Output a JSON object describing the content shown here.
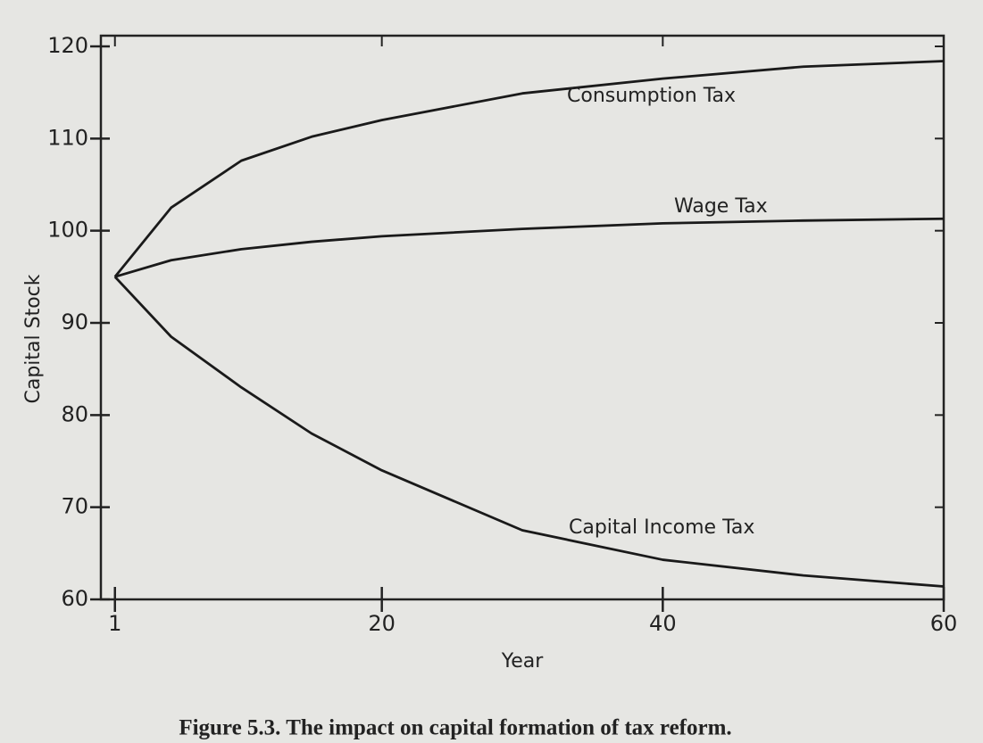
{
  "chart_data": {
    "type": "line",
    "caption": "Figure 5.3. The impact on capital formation of tax reform.",
    "xlabel": "Year",
    "ylabel": "Capital Stock",
    "x": [
      1,
      5,
      10,
      15,
      20,
      30,
      40,
      50,
      60
    ],
    "series": [
      {
        "name": "Consumption Tax",
        "color": "#1a1a1a",
        "values": [
          95,
          102.5,
          107.6,
          110.2,
          112,
          114.9,
          116.5,
          117.8,
          118.4
        ]
      },
      {
        "name": "Wage Tax",
        "color": "#1a1a1a",
        "values": [
          95,
          96.8,
          98,
          98.8,
          99.4,
          100.2,
          100.8,
          101.1,
          101.3
        ]
      },
      {
        "name": "Capital Income Tax",
        "color": "#1a1a1a",
        "values": [
          95,
          88.5,
          83,
          78,
          74,
          67.5,
          64.3,
          62.6,
          61.4
        ]
      }
    ],
    "xlim": [
      0,
      60
    ],
    "ylim": [
      60,
      120
    ],
    "xticks": [
      1,
      20,
      40,
      60
    ],
    "yticks": [
      60,
      70,
      80,
      90,
      100,
      110,
      120
    ]
  }
}
